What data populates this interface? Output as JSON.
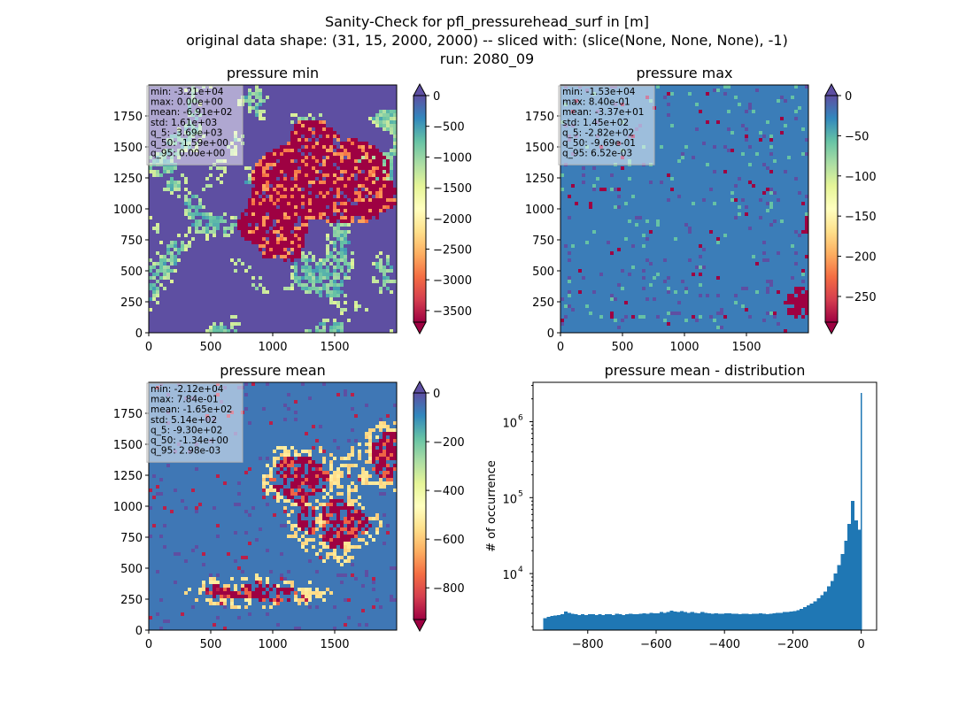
{
  "figure": {
    "title_lines": [
      "Sanity-Check for pfl_pressurehead_surf in [m]",
      "original data shape: (31, 15, 2000, 2000) -- sliced with: (slice(None, None, None), -1)",
      "run: 2080_09"
    ]
  },
  "chart_data": [
    {
      "type": "heatmap",
      "title": "pressure min",
      "colormap": "Spectral",
      "xlim": [
        0,
        2000
      ],
      "ylim": [
        0,
        2000
      ],
      "x_ticks": [
        "0",
        "500",
        "1000",
        "1500"
      ],
      "y_ticks": [
        "0",
        "250",
        "500",
        "750",
        "1000",
        "1250",
        "1500",
        "1750"
      ],
      "colorbar": {
        "ticks": [
          "0",
          "−500",
          "−1000",
          "−1500",
          "−2000",
          "−2500",
          "−3000",
          "−3500"
        ],
        "tick_values": [
          0,
          -500,
          -1000,
          -1500,
          -2000,
          -2500,
          -3000,
          -3500
        ],
        "range": [
          -3690,
          0
        ],
        "extend": "both"
      },
      "stats": [
        "min: -3.21e+04",
        "max: 0.00e+00",
        "mean: -6.91e+02",
        "std: 1.61e+03",
        "q_5: -3.69e+03",
        "q_50: -1.59e+00",
        "q_95: 0.00e+00"
      ]
    },
    {
      "type": "heatmap",
      "title": "pressure max",
      "colormap": "Spectral",
      "xlim": [
        0,
        2000
      ],
      "ylim": [
        0,
        2000
      ],
      "x_ticks": [
        "0",
        "500",
        "1000",
        "1500"
      ],
      "y_ticks": [
        "0",
        "250",
        "500",
        "750",
        "1000",
        "1250",
        "1500",
        "1750"
      ],
      "colorbar": {
        "ticks": [
          "0",
          "−50",
          "−100",
          "−150",
          "−200",
          "−250"
        ],
        "tick_values": [
          0,
          -50,
          -100,
          -150,
          -200,
          -250
        ],
        "range": [
          -282,
          0
        ],
        "extend": "both"
      },
      "stats": [
        "min: -1.53e+04",
        "max: 8.40e-01",
        "mean: -3.37e+01",
        "std: 1.45e+02",
        "q_5: -2.82e+02",
        "q_50: -9.69e-01",
        "q_95: 6.52e-03"
      ]
    },
    {
      "type": "heatmap",
      "title": "pressure mean",
      "colormap": "Spectral",
      "xlim": [
        0,
        2000
      ],
      "ylim": [
        0,
        2000
      ],
      "x_ticks": [
        "0",
        "500",
        "1000",
        "1500"
      ],
      "y_ticks": [
        "0",
        "250",
        "500",
        "750",
        "1000",
        "1250",
        "1500",
        "1750"
      ],
      "colorbar": {
        "ticks": [
          "0",
          "−200",
          "−400",
          "−600",
          "−800"
        ],
        "tick_values": [
          0,
          -200,
          -400,
          -600,
          -800
        ],
        "range": [
          -930,
          0
        ],
        "extend": "both"
      },
      "stats": [
        "min: -2.12e+04",
        "max: 7.84e-01",
        "mean: -1.65e+02",
        "std: 5.14e+02",
        "q_5: -9.30e+02",
        "q_50: -1.34e+00",
        "q_95: 2.98e-03"
      ]
    },
    {
      "type": "bar",
      "title": "pressure mean - distribution",
      "ylabel": "# of occurrence",
      "yscale": "log",
      "ylim": [
        1800,
        3300000
      ],
      "xlim": [
        -960,
        45
      ],
      "x_ticks": [
        -800,
        -600,
        -400,
        -200,
        0
      ],
      "x_tick_labels": [
        "−800",
        "−600",
        "−400",
        "−200",
        "0"
      ],
      "y_ticks": [
        10000,
        100000,
        1000000
      ],
      "y_tick_labels": [
        "10",
        "10",
        "10"
      ],
      "y_tick_exponents": [
        "4",
        "5",
        "6"
      ],
      "bar_color": "#1f77b4",
      "bins": [
        {
          "x": -930,
          "y": 2600
        },
        {
          "x": -920,
          "y": 2700
        },
        {
          "x": -910,
          "y": 2750
        },
        {
          "x": -900,
          "y": 2800
        },
        {
          "x": -890,
          "y": 2850
        },
        {
          "x": -880,
          "y": 2900
        },
        {
          "x": -870,
          "y": 3150
        },
        {
          "x": -860,
          "y": 3050
        },
        {
          "x": -850,
          "y": 2950
        },
        {
          "x": -840,
          "y": 2900
        },
        {
          "x": -830,
          "y": 2850
        },
        {
          "x": -820,
          "y": 2900
        },
        {
          "x": -810,
          "y": 2850
        },
        {
          "x": -800,
          "y": 2900
        },
        {
          "x": -790,
          "y": 2900
        },
        {
          "x": -780,
          "y": 2850
        },
        {
          "x": -770,
          "y": 2900
        },
        {
          "x": -760,
          "y": 2850
        },
        {
          "x": -750,
          "y": 2900
        },
        {
          "x": -740,
          "y": 2900
        },
        {
          "x": -730,
          "y": 2850
        },
        {
          "x": -720,
          "y": 2950
        },
        {
          "x": -710,
          "y": 2900
        },
        {
          "x": -700,
          "y": 2850
        },
        {
          "x": -690,
          "y": 2900
        },
        {
          "x": -680,
          "y": 2950
        },
        {
          "x": -670,
          "y": 2900
        },
        {
          "x": -660,
          "y": 2900
        },
        {
          "x": -650,
          "y": 2950
        },
        {
          "x": -640,
          "y": 3000
        },
        {
          "x": -630,
          "y": 2950
        },
        {
          "x": -620,
          "y": 3050
        },
        {
          "x": -610,
          "y": 3000
        },
        {
          "x": -600,
          "y": 3000
        },
        {
          "x": -590,
          "y": 3100
        },
        {
          "x": -580,
          "y": 3050
        },
        {
          "x": -570,
          "y": 3100
        },
        {
          "x": -560,
          "y": 3250
        },
        {
          "x": -550,
          "y": 3150
        },
        {
          "x": -540,
          "y": 3100
        },
        {
          "x": -530,
          "y": 3200
        },
        {
          "x": -520,
          "y": 3100
        },
        {
          "x": -510,
          "y": 3050
        },
        {
          "x": -500,
          "y": 3100
        },
        {
          "x": -490,
          "y": 3050
        },
        {
          "x": -480,
          "y": 3000
        },
        {
          "x": -470,
          "y": 3100
        },
        {
          "x": -460,
          "y": 3050
        },
        {
          "x": -450,
          "y": 3000
        },
        {
          "x": -440,
          "y": 2950
        },
        {
          "x": -430,
          "y": 3000
        },
        {
          "x": -420,
          "y": 2950
        },
        {
          "x": -410,
          "y": 2950
        },
        {
          "x": -400,
          "y": 3000
        },
        {
          "x": -390,
          "y": 3000
        },
        {
          "x": -380,
          "y": 2950
        },
        {
          "x": -370,
          "y": 2950
        },
        {
          "x": -360,
          "y": 2900
        },
        {
          "x": -350,
          "y": 2950
        },
        {
          "x": -340,
          "y": 2950
        },
        {
          "x": -330,
          "y": 2900
        },
        {
          "x": -320,
          "y": 2950
        },
        {
          "x": -310,
          "y": 2950
        },
        {
          "x": -300,
          "y": 3000
        },
        {
          "x": -290,
          "y": 2950
        },
        {
          "x": -280,
          "y": 2900
        },
        {
          "x": -270,
          "y": 2950
        },
        {
          "x": -260,
          "y": 3000
        },
        {
          "x": -250,
          "y": 3050
        },
        {
          "x": -240,
          "y": 3050
        },
        {
          "x": -230,
          "y": 3100
        },
        {
          "x": -220,
          "y": 3100
        },
        {
          "x": -210,
          "y": 3150
        },
        {
          "x": -200,
          "y": 3200
        },
        {
          "x": -190,
          "y": 3300
        },
        {
          "x": -180,
          "y": 3450
        },
        {
          "x": -170,
          "y": 3600
        },
        {
          "x": -160,
          "y": 3800
        },
        {
          "x": -150,
          "y": 4000
        },
        {
          "x": -140,
          "y": 4300
        },
        {
          "x": -130,
          "y": 4700
        },
        {
          "x": -120,
          "y": 5200
        },
        {
          "x": -110,
          "y": 5800
        },
        {
          "x": -100,
          "y": 6800
        },
        {
          "x": -90,
          "y": 8000
        },
        {
          "x": -80,
          "y": 10000
        },
        {
          "x": -70,
          "y": 13000
        },
        {
          "x": -60,
          "y": 18000
        },
        {
          "x": -50,
          "y": 27000
        },
        {
          "x": -40,
          "y": 45000
        },
        {
          "x": -30,
          "y": 90000
        },
        {
          "x": -20,
          "y": 50000
        },
        {
          "x": -10,
          "y": 38000
        },
        {
          "x": 0,
          "y": 2400000
        }
      ]
    }
  ]
}
